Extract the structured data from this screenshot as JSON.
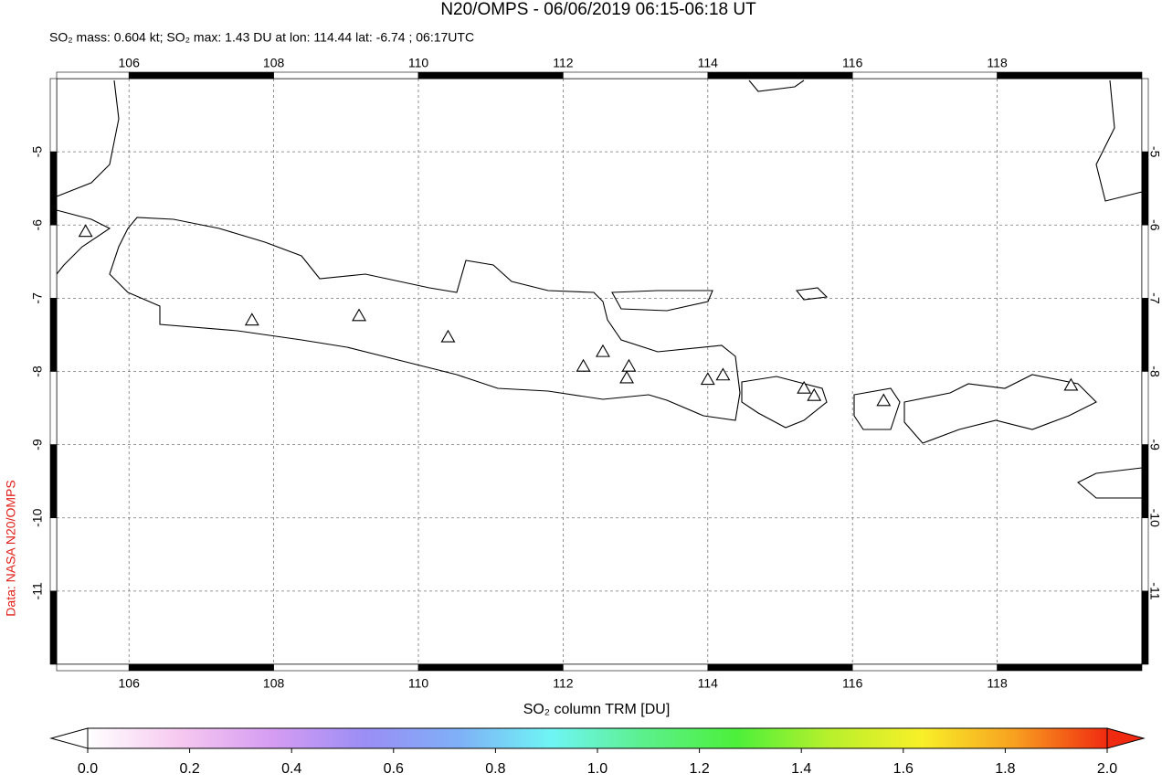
{
  "chart_data": {
    "type": "map",
    "title": "N20/OMPS - 06/06/2019 06:15-06:18 UT",
    "subtitle": "SO₂ mass: 0.604 kt; SO₂ max: 1.43 DU at lon: 114.44 lat: -6.74 ; 06:17UTC",
    "credit": "Data: NASA N20/OMPS",
    "xlim": [
      105,
      120
    ],
    "ylim": [
      -12,
      -4
    ],
    "xticks": [
      106,
      108,
      110,
      112,
      114,
      116,
      118
    ],
    "yticks": [
      -5,
      -6,
      -7,
      -8,
      -9,
      -10,
      -11
    ],
    "grid": true,
    "volcanoes": {
      "lon": [
        105.4,
        107.7,
        109.18,
        110.41,
        112.28,
        112.55,
        112.91,
        112.88,
        114.0,
        114.21,
        115.33,
        115.47,
        116.43,
        119.02
      ],
      "lat": [
        -6.09,
        -7.3,
        -7.24,
        -7.53,
        -7.93,
        -7.73,
        -7.93,
        -8.09,
        -8.11,
        -8.05,
        -8.23,
        -8.33,
        -8.4,
        -8.19
      ]
    },
    "colorbar": {
      "label": "SO₂ column TRM [DU]",
      "lim": [
        0,
        2
      ],
      "ticks": [
        {
          "value": 0,
          "label": "0.0"
        },
        {
          "value": 0.2,
          "label": "0.2"
        },
        {
          "value": 0.4,
          "label": "0.4"
        },
        {
          "value": 0.6,
          "label": "0.6"
        },
        {
          "value": 0.8,
          "label": "0.8"
        },
        {
          "value": 1,
          "label": "1.0"
        },
        {
          "value": 1.2,
          "label": "1.2"
        },
        {
          "value": 1.4,
          "label": "1.4"
        },
        {
          "value": 1.6,
          "label": "1.6"
        },
        {
          "value": 1.8,
          "label": "1.8"
        },
        {
          "value": 2,
          "label": "2.0"
        }
      ],
      "colors": [
        "#ffffff",
        "#f6c8f0",
        "#d59cf2",
        "#9a8ef5",
        "#7fb0f7",
        "#6ff5f5",
        "#5cf08c",
        "#4cf03a",
        "#b8f02c",
        "#f8f028",
        "#f8a020",
        "#f02a10"
      ]
    }
  }
}
